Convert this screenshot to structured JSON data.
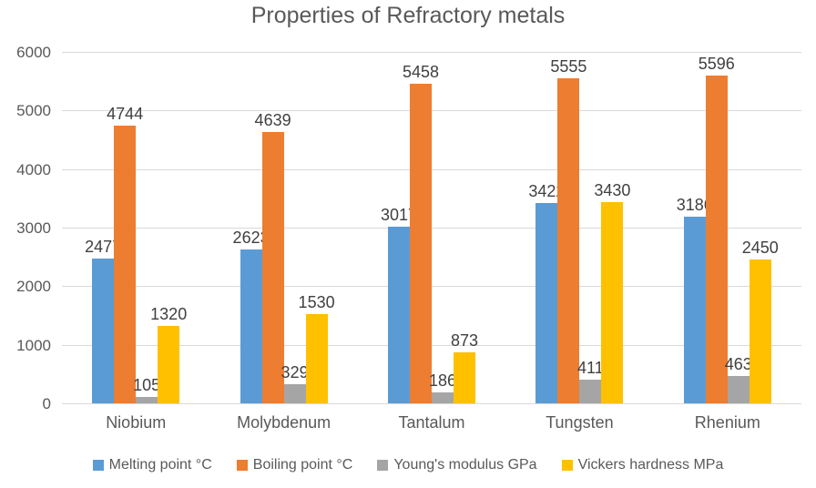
{
  "title": "Properties of Refractory metals",
  "colors": {
    "background": "#FFFFFF",
    "title_text": "#595959",
    "axis_text": "#595959",
    "data_label_text": "#404040",
    "gridline": "#D9D9D9",
    "series": [
      "#5B9BD5",
      "#ED7D31",
      "#A5A5A5",
      "#FFC000"
    ]
  },
  "chart_data": {
    "type": "bar",
    "title": "Properties of Refractory metals",
    "categories": [
      "Niobium",
      "Molybdenum",
      "Tantalum",
      "Tungsten",
      "Rhenium"
    ],
    "series": [
      {
        "name": "Melting point °C",
        "color": "#5B9BD5",
        "values": [
          2477,
          2623,
          3017,
          3422,
          3186
        ]
      },
      {
        "name": "Boiling point °C",
        "color": "#ED7D31",
        "values": [
          4744,
          4639,
          5458,
          5555,
          5596
        ]
      },
      {
        "name": "Young's modulus GPa",
        "color": "#A5A5A5",
        "values": [
          105,
          329,
          186,
          411,
          463
        ]
      },
      {
        "name": "Vickers hardness MPa",
        "color": "#FFC000",
        "values": [
          1320,
          1530,
          873,
          3430,
          2450
        ]
      }
    ],
    "xlabel": "",
    "ylabel": "",
    "ylim": [
      0,
      6000
    ],
    "ytick_interval": 1000,
    "yticks": [
      "0",
      "1000",
      "2000",
      "3000",
      "4000",
      "5000",
      "6000"
    ],
    "grid": true,
    "data_labels": true,
    "legend_position": "bottom"
  }
}
